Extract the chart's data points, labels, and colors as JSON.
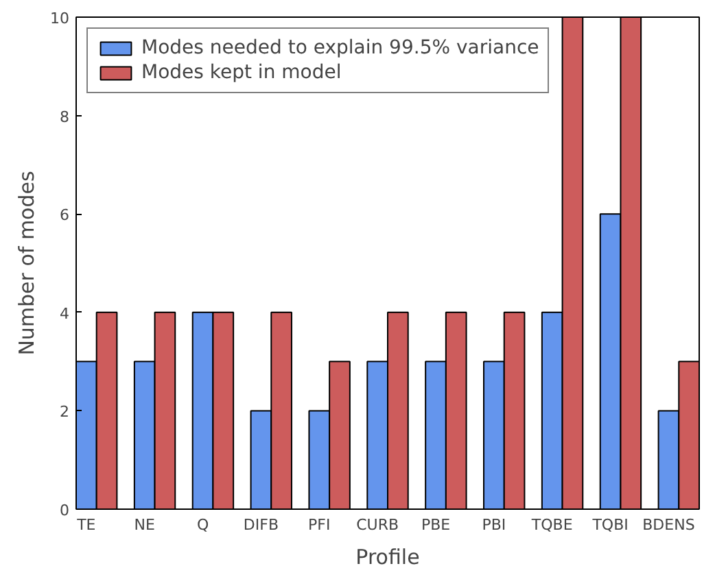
{
  "chart_data": {
    "type": "bar",
    "xlabel": "Profile",
    "ylabel": "Number of modes",
    "categories": [
      "TE",
      "NE",
      "Q",
      "DIFB",
      "PFI",
      "CURB",
      "PBE",
      "PBI",
      "TQBE",
      "TQBI",
      "BDENS"
    ],
    "series": [
      {
        "name": "Modes needed to explain 99.5% variance",
        "color": "#6495ed",
        "values": [
          3,
          3,
          4,
          2,
          2,
          3,
          3,
          3,
          4,
          6,
          2
        ]
      },
      {
        "name": "Modes kept in model",
        "color": "#cd5c5c",
        "values": [
          4,
          4,
          4,
          4,
          3,
          4,
          4,
          4,
          10,
          10,
          3
        ]
      }
    ],
    "ylim": [
      0,
      10
    ],
    "yticks": [
      0,
      2,
      4,
      6,
      8,
      10
    ],
    "grid": false,
    "legend": "top left"
  }
}
